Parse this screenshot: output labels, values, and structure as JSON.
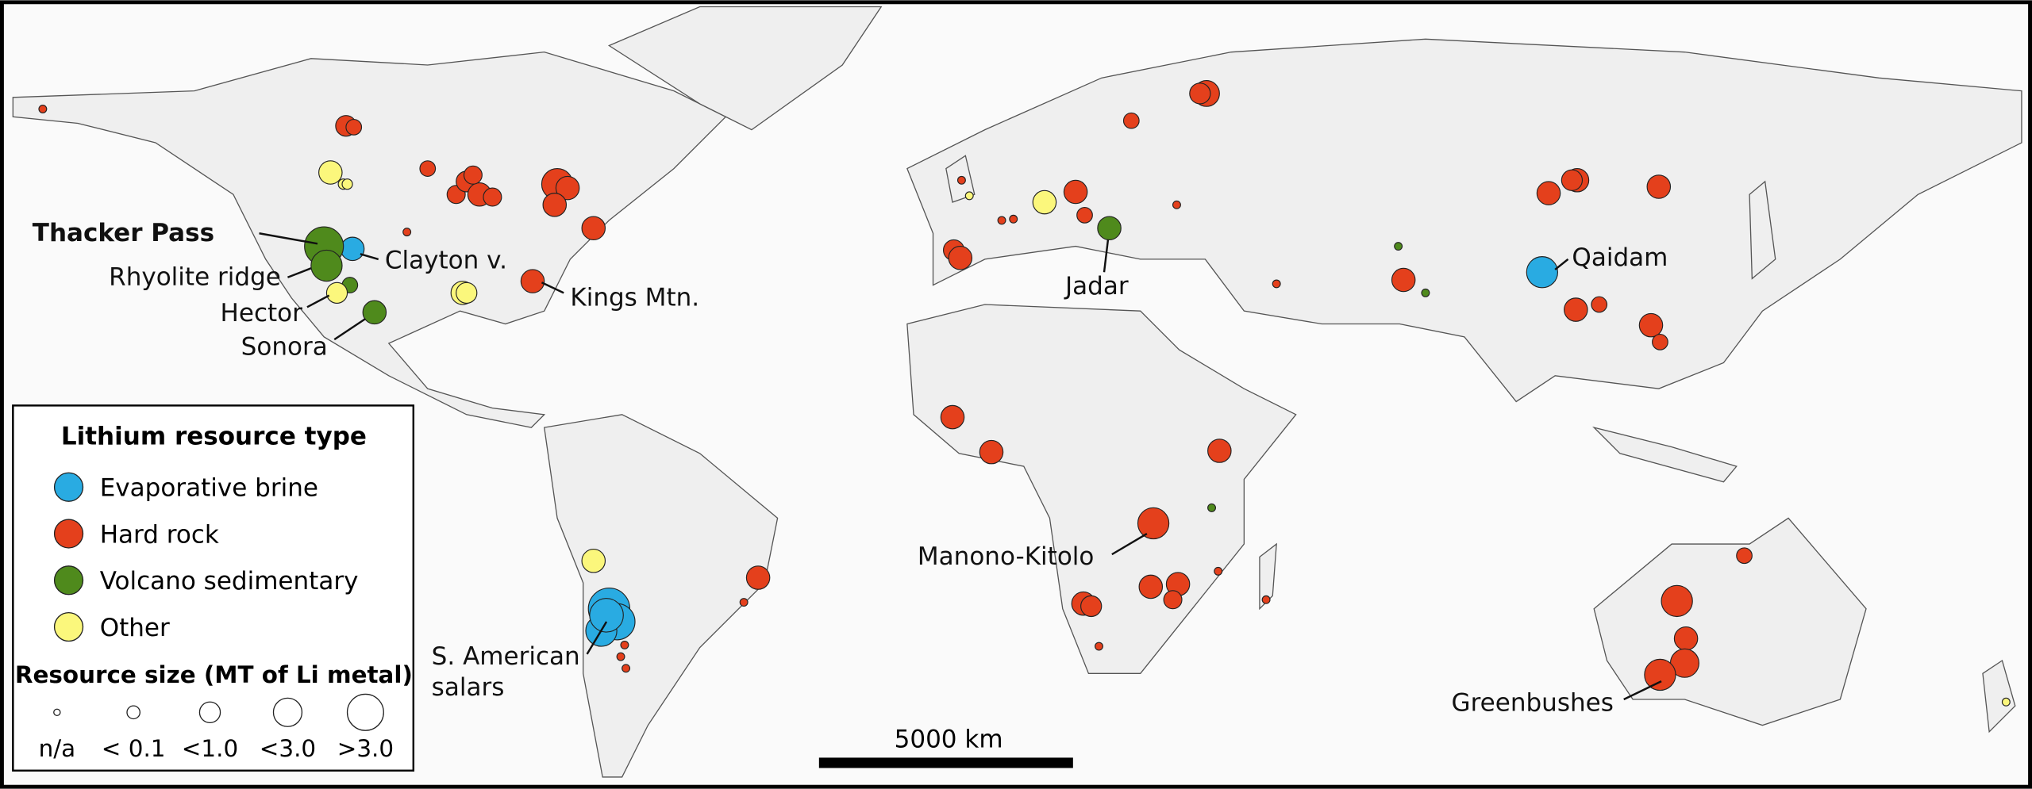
{
  "map_labels": [
    {
      "text": "Thacker Pass"
    },
    {
      "text": "Clayton v."
    },
    {
      "text": "Rhyolite ridge"
    },
    {
      "text": "Hector"
    },
    {
      "text": "Sonora"
    },
    {
      "text": "Kings Mtn."
    },
    {
      "text": "Jadar"
    },
    {
      "text": "Qaidam"
    },
    {
      "text": "Manono-Kitolo"
    },
    {
      "text": [
        "S. American",
        "salars"
      ]
    },
    {
      "text": "Greenbushes"
    }
  ],
  "legend": {
    "title": "Lithium resource type",
    "items": [
      {
        "name": "Evaporative brine",
        "color": "#29abe2"
      },
      {
        "name": "Hard rock",
        "color": "#e4401c"
      },
      {
        "name": "Volcano sedimentary",
        "color": "#4f8a1c"
      },
      {
        "name": "Other",
        "color": "#fbf77c"
      }
    ],
    "size_title": "Resource size (MT of Li metal)",
    "size_classes": [
      "n/a",
      "< 0.1",
      "<1.0",
      "<3.0",
      ">3.0"
    ]
  },
  "scale_bar": {
    "label": "5000 km"
  }
}
